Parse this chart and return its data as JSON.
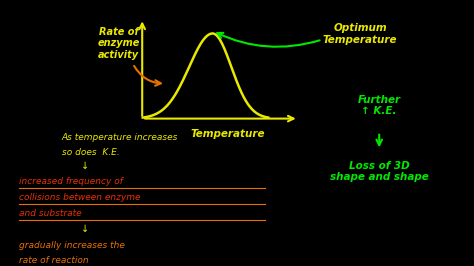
{
  "bg_color": "#000000",
  "fig_width": 4.74,
  "fig_height": 2.66,
  "dpi": 100,
  "curve_color": "#e8e800",
  "axis_color": "#e8e800",
  "orange_color": "#e87000",
  "green_color": "#00e800",
  "red_text_color": "#e83000",
  "yellow_color": "#e8e800",
  "label_rate": "Rate of\nenzyme\nactivity",
  "label_temp": "Temperature",
  "label_optimum": "Optimum\nTemperature",
  "label_further_ke": "Further\n↑ K.E.",
  "label_loss": "Loss of 3D\nshape and shape",
  "text_line1": "As temperature increases",
  "text_line2": "so does  K.E.",
  "text_line3": "↓",
  "text_line4": "increased frequency of",
  "text_line5": "collisions between enzyme",
  "text_line6": "and substrate",
  "text_line7": "↓",
  "text_line8": "gradually increases the",
  "text_line9": "rate of reaction"
}
